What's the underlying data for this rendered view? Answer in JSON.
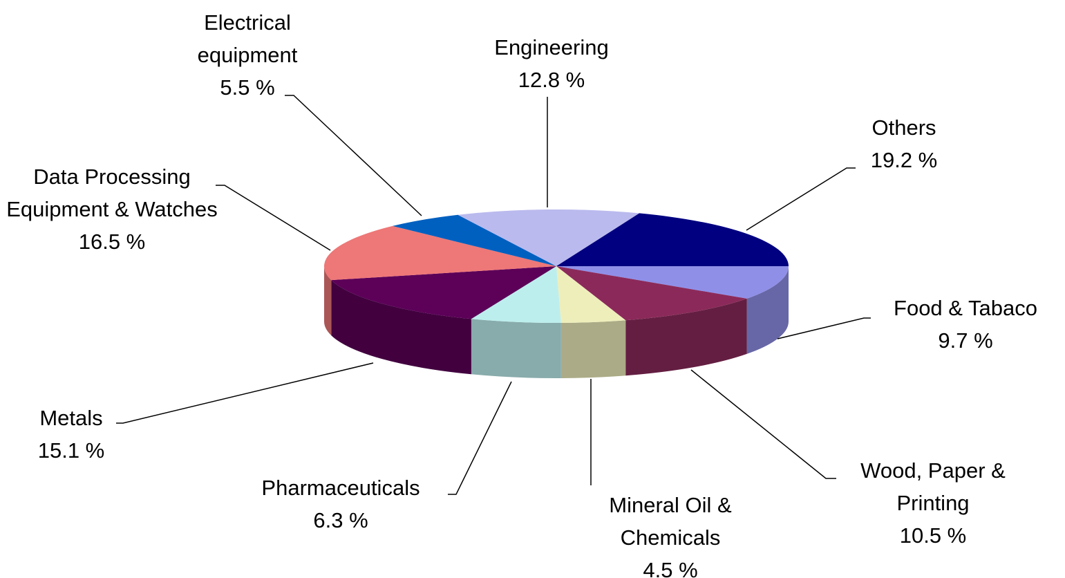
{
  "chart_data": {
    "type": "pie",
    "categories": [
      "Food & Tabaco",
      "Wood, Paper & Printing",
      "Mineral Oil & Chemicals",
      "Pharmaceuticals",
      "Metals",
      "Data Processing Equipment & Watches",
      "Electrical equipment",
      "Engineering",
      "Others"
    ],
    "values": [
      9.7,
      10.5,
      4.5,
      6.3,
      15.1,
      16.5,
      5.5,
      12.8,
      19.2
    ],
    "value_labels": [
      "9.7 %",
      "10.5 %",
      "4.5 %",
      "6.3 %",
      "15.1 %",
      "16.5 %",
      "5.5 %",
      "12.8 %",
      "19.2 %"
    ],
    "colors": [
      "#8f8fe8",
      "#8b2a5a",
      "#eeeebb",
      "#bdeeee",
      "#5c0058",
      "#ee7777",
      "#0060c0",
      "#babaee",
      "#000080"
    ]
  }
}
